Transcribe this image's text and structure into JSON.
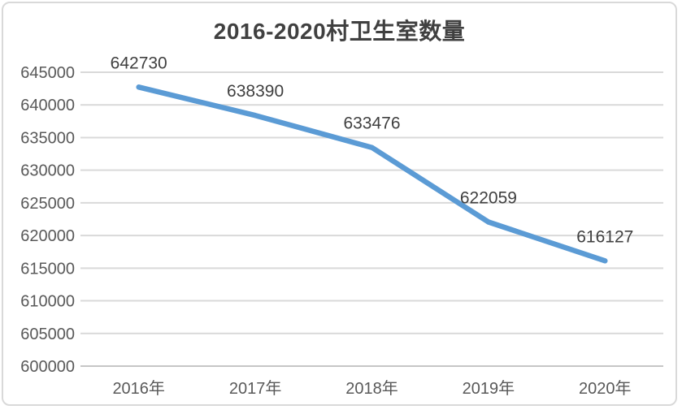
{
  "chart_data": {
    "type": "line",
    "title": "2016-2020村卫生室数量",
    "categories": [
      "2016年",
      "2017年",
      "2018年",
      "2019年",
      "2020年"
    ],
    "series": [
      {
        "name": "村卫生室数量",
        "values": [
          642730,
          638390,
          633476,
          622059,
          616127
        ],
        "data_labels": [
          "642730",
          "638390",
          "633476",
          "622059",
          "616127"
        ],
        "data_label_position": "above"
      }
    ],
    "xlabel": "",
    "ylabel": "",
    "ylim": [
      600000,
      645000
    ],
    "ytick_step": 5000,
    "ytick_labels": [
      "645000",
      "640000",
      "635000",
      "630000",
      "625000",
      "620000",
      "615000",
      "610000",
      "605000",
      "600000"
    ],
    "grid": true,
    "legend": "none",
    "colors": {
      "line": "#5B9BD5",
      "gridline": "#D9D9D9",
      "axis_line": "#C6C6C6",
      "axis_label": "#595959",
      "data_label": "#404040",
      "title": "#404040",
      "background": "#FFFFFF",
      "border": "#D9D9D9"
    }
  }
}
